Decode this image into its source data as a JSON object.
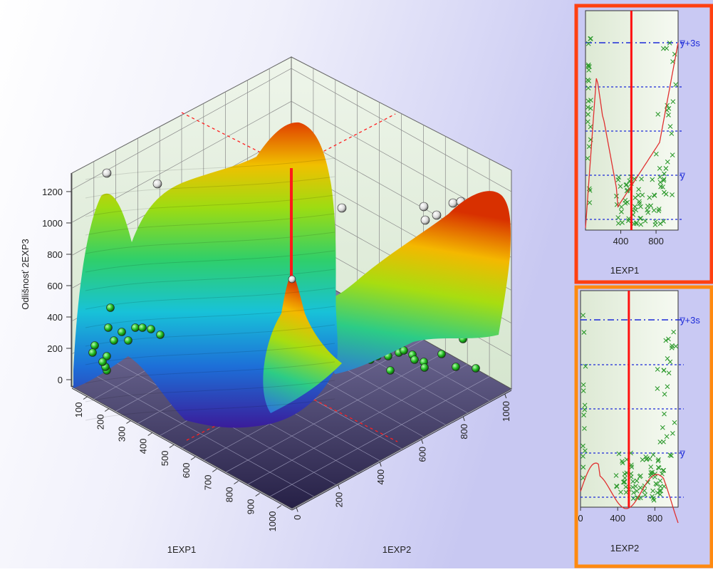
{
  "colors": {
    "surface_low": "#2a1a8a",
    "surface_mid": "#1fa0e0",
    "surface_high_green": "#7ad010",
    "surface_top": "#e04000",
    "marker_green": "#22bb22",
    "marker_white": "#f4f4f4",
    "cursor": "#ff1010",
    "panel1_border": "#ff4010",
    "panel2_border": "#ff8a10",
    "cross": "#2e9a2e",
    "ref_line": "#1c2ad8",
    "fit_curve": "#e03030"
  },
  "chart_data": [
    {
      "type": "surface",
      "ylabel": "Odlišnosť 2EXP3",
      "xlabel": "1EXP1",
      "zlabel": "1EXP2",
      "axis_1EXP1": {
        "ticks": [
          "100",
          "200",
          "300",
          "400",
          "500",
          "600",
          "700",
          "800",
          "900",
          "1000"
        ]
      },
      "axis_1EXP2": {
        "ticks": [
          "0",
          "200",
          "400",
          "600",
          "800",
          "1000"
        ]
      },
      "axis_value": {
        "ticks": [
          "0",
          "200",
          "400",
          "600",
          "800",
          "1000",
          "1200"
        ],
        "range": [
          0,
          1300
        ]
      },
      "cursor": {
        "exp1": 530,
        "exp2": 530
      }
    },
    {
      "type": "scatter",
      "xlabel": "1EXP1",
      "x_ticks": [
        "400",
        "800"
      ],
      "xlim": [
        0,
        1050
      ],
      "ref_labels": [
        "y̅+3s",
        "y̅"
      ],
      "cursor_x": 520
    },
    {
      "type": "scatter",
      "xlabel": "1EXP2",
      "x_ticks": [
        "0",
        "400",
        "800"
      ],
      "xlim": [
        0,
        1050
      ],
      "ref_labels": [
        "y̅+3s",
        "y̅"
      ],
      "cursor_x": 520
    }
  ]
}
